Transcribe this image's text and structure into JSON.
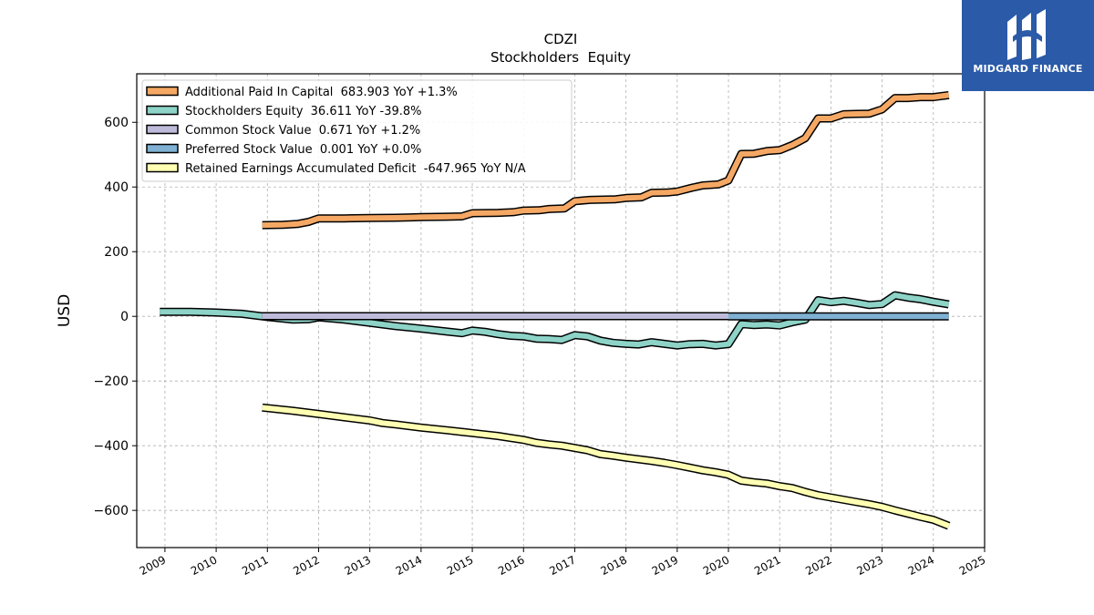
{
  "brand": {
    "name": "MIDGARD FINANCE",
    "color": "#2a5aa8",
    "icon": "midgard-logo-icon"
  },
  "chart_data": {
    "type": "line",
    "title": "CDZI",
    "subtitle": "Stockholders  Equity",
    "xlabel": "",
    "ylabel": "USD",
    "xlim": [
      2008.45,
      2025.0
    ],
    "ylim": [
      -715,
      750
    ],
    "xticks": [
      "2009",
      "2010",
      "2011",
      "2012",
      "2013",
      "2014",
      "2015",
      "2016",
      "2017",
      "2018",
      "2019",
      "2020",
      "2021",
      "2022",
      "2023",
      "2024",
      "2025"
    ],
    "yticks": [
      600,
      400,
      200,
      0,
      -200,
      -400,
      -600
    ],
    "ytick_labels": [
      "600",
      "400",
      "200",
      "0",
      "−200",
      "−400",
      "−600"
    ],
    "grid": true,
    "legend_position": "top-left",
    "series": [
      {
        "name": "Additional Paid In Capital  683.903 YoY +1.3%",
        "color": "#f5a864",
        "points": [
          [
            2010.9,
            282
          ],
          [
            2011.3,
            283
          ],
          [
            2011.6,
            286
          ],
          [
            2011.8,
            292
          ],
          [
            2012.0,
            303
          ],
          [
            2012.5,
            303
          ],
          [
            2013.0,
            304
          ],
          [
            2013.5,
            305
          ],
          [
            2013.8,
            306
          ],
          [
            2014.0,
            307
          ],
          [
            2014.5,
            308
          ],
          [
            2014.8,
            309
          ],
          [
            2015.0,
            319
          ],
          [
            2015.5,
            320
          ],
          [
            2015.8,
            322
          ],
          [
            2016.0,
            327
          ],
          [
            2016.3,
            328
          ],
          [
            2016.5,
            332
          ],
          [
            2016.8,
            334
          ],
          [
            2017.0,
            356
          ],
          [
            2017.3,
            360
          ],
          [
            2017.8,
            362
          ],
          [
            2018.0,
            366
          ],
          [
            2018.3,
            368
          ],
          [
            2018.5,
            382
          ],
          [
            2018.8,
            383
          ],
          [
            2019.0,
            386
          ],
          [
            2019.3,
            398
          ],
          [
            2019.5,
            405
          ],
          [
            2019.8,
            408
          ],
          [
            2020.0,
            420
          ],
          [
            2020.25,
            502
          ],
          [
            2020.5,
            503
          ],
          [
            2020.75,
            511
          ],
          [
            2021.0,
            514
          ],
          [
            2021.25,
            530
          ],
          [
            2021.5,
            551
          ],
          [
            2021.75,
            612
          ],
          [
            2022.0,
            612
          ],
          [
            2022.25,
            625
          ],
          [
            2022.5,
            626
          ],
          [
            2022.75,
            627
          ],
          [
            2023.0,
            640
          ],
          [
            2023.25,
            675
          ],
          [
            2023.5,
            675
          ],
          [
            2023.75,
            678
          ],
          [
            2024.0,
            678
          ],
          [
            2024.3,
            684
          ]
        ]
      },
      {
        "name": "Stockholders Equity  36.611 YoY -39.8%",
        "color": "#8dd3c7",
        "points": [
          [
            2008.9,
            14
          ],
          [
            2009.5,
            14
          ],
          [
            2010.0,
            12
          ],
          [
            2010.5,
            8
          ],
          [
            2011.0,
            -2
          ],
          [
            2011.5,
            -10
          ],
          [
            2011.8,
            -9
          ],
          [
            2012.0,
            -3
          ],
          [
            2012.5,
            -10
          ],
          [
            2013.0,
            -20
          ],
          [
            2013.5,
            -30
          ],
          [
            2014.0,
            -38
          ],
          [
            2014.5,
            -47
          ],
          [
            2014.8,
            -52
          ],
          [
            2015.0,
            -44
          ],
          [
            2015.25,
            -48
          ],
          [
            2015.5,
            -55
          ],
          [
            2015.75,
            -60
          ],
          [
            2016.0,
            -62
          ],
          [
            2016.25,
            -69
          ],
          [
            2016.5,
            -70
          ],
          [
            2016.75,
            -73
          ],
          [
            2017.0,
            -58
          ],
          [
            2017.25,
            -62
          ],
          [
            2017.5,
            -75
          ],
          [
            2017.75,
            -82
          ],
          [
            2018.0,
            -85
          ],
          [
            2018.25,
            -87
          ],
          [
            2018.5,
            -80
          ],
          [
            2018.75,
            -85
          ],
          [
            2019.0,
            -90
          ],
          [
            2019.25,
            -86
          ],
          [
            2019.5,
            -85
          ],
          [
            2019.75,
            -90
          ],
          [
            2020.0,
            -86
          ],
          [
            2020.25,
            -24
          ],
          [
            2020.5,
            -27
          ],
          [
            2020.75,
            -25
          ],
          [
            2021.0,
            -28
          ],
          [
            2021.25,
            -18
          ],
          [
            2021.5,
            -10
          ],
          [
            2021.75,
            50
          ],
          [
            2022.0,
            44
          ],
          [
            2022.25,
            48
          ],
          [
            2022.5,
            42
          ],
          [
            2022.75,
            35
          ],
          [
            2023.0,
            38
          ],
          [
            2023.25,
            65
          ],
          [
            2023.5,
            58
          ],
          [
            2023.75,
            53
          ],
          [
            2024.0,
            45
          ],
          [
            2024.3,
            37
          ]
        ]
      },
      {
        "name": "Common Stock Value  0.671 YoY +1.2%",
        "color": "#bebada",
        "points": [
          [
            2010.9,
            0.6
          ],
          [
            2020.0,
            0.6
          ]
        ]
      },
      {
        "name": "Preferred Stock Value  0.001 YoY +0.0%",
        "color": "#80b1d3",
        "points": [
          [
            2020.0,
            0.0
          ],
          [
            2024.3,
            0.0
          ]
        ]
      },
      {
        "name": "Retained Earnings Accumulated Deficit  -647.965 YoY N/A",
        "color": "#ffffb3",
        "points": [
          [
            2010.9,
            -282
          ],
          [
            2011.5,
            -292
          ],
          [
            2012.0,
            -302
          ],
          [
            2012.5,
            -312
          ],
          [
            2013.0,
            -322
          ],
          [
            2013.25,
            -330
          ],
          [
            2013.5,
            -334
          ],
          [
            2014.0,
            -344
          ],
          [
            2014.5,
            -352
          ],
          [
            2015.0,
            -361
          ],
          [
            2015.5,
            -370
          ],
          [
            2015.75,
            -376
          ],
          [
            2016.0,
            -382
          ],
          [
            2016.25,
            -391
          ],
          [
            2016.5,
            -396
          ],
          [
            2016.75,
            -400
          ],
          [
            2017.0,
            -407
          ],
          [
            2017.25,
            -414
          ],
          [
            2017.5,
            -426
          ],
          [
            2017.75,
            -431
          ],
          [
            2018.0,
            -437
          ],
          [
            2018.5,
            -447
          ],
          [
            2018.75,
            -453
          ],
          [
            2019.0,
            -460
          ],
          [
            2019.25,
            -468
          ],
          [
            2019.5,
            -476
          ],
          [
            2019.75,
            -482
          ],
          [
            2020.0,
            -490
          ],
          [
            2020.25,
            -508
          ],
          [
            2020.5,
            -513
          ],
          [
            2020.75,
            -517
          ],
          [
            2021.0,
            -525
          ],
          [
            2021.25,
            -531
          ],
          [
            2021.5,
            -543
          ],
          [
            2021.75,
            -553
          ],
          [
            2022.0,
            -560
          ],
          [
            2022.5,
            -574
          ],
          [
            2022.75,
            -581
          ],
          [
            2023.0,
            -589
          ],
          [
            2023.25,
            -600
          ],
          [
            2023.5,
            -610
          ],
          [
            2023.75,
            -620
          ],
          [
            2024.0,
            -629
          ],
          [
            2024.3,
            -648
          ]
        ]
      }
    ]
  }
}
